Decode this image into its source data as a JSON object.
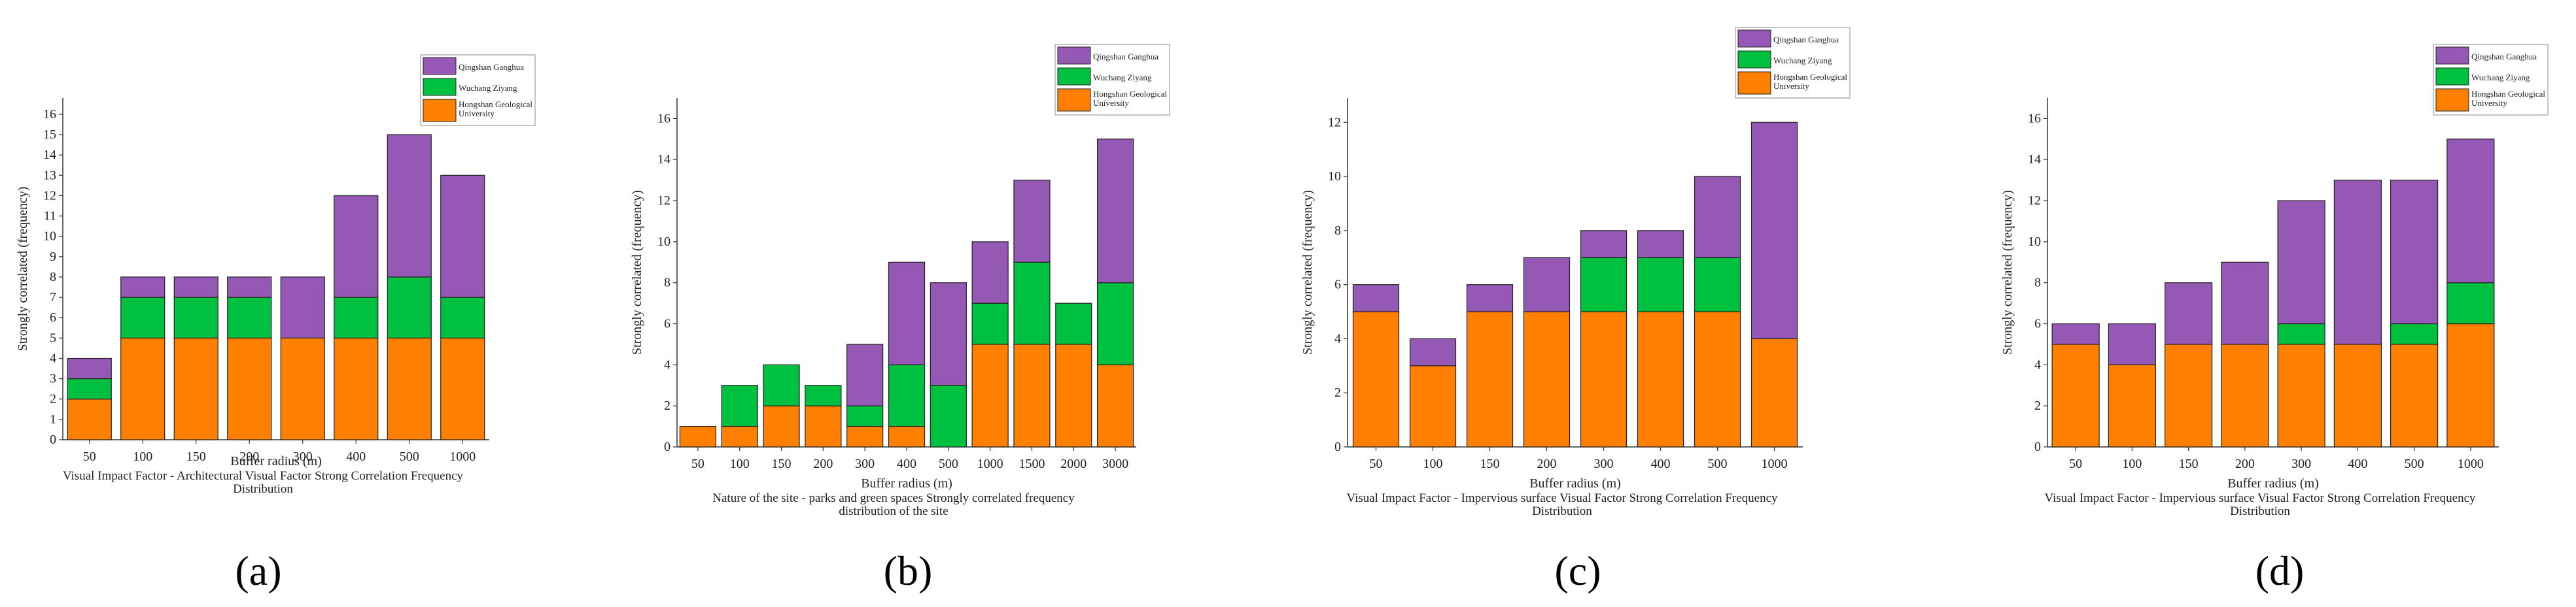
{
  "colors": {
    "Hongshan Geological University": "#ff8000",
    "Wuchang Ziyang": "#00c040",
    "Qingshan Ganghua": "#9558b4",
    "axis": "#333333",
    "bar_stroke": "#222222"
  },
  "legend_order": [
    "Qingshan Ganghua",
    "Wuchang Ziyang",
    "Hongshan Geological University"
  ],
  "chart_data": [
    {
      "id": "a",
      "type": "bar",
      "stacked": true,
      "panel_label": "(a)",
      "title": "Visual Impact Factor - Architectural Visual Factor Strong Correlation Frequency Distribution",
      "caption_lines": [
        "Visual Impact Factor - Architectural Visual Factor Strong Correlation Frequency",
        "Distribution"
      ],
      "xlabel": "Buffer radius (m)",
      "ylabel": "Strongly correlated (frequency)",
      "ylim": [
        0,
        16.8
      ],
      "yticks": [
        0,
        1,
        2,
        3,
        4,
        5,
        6,
        7,
        8,
        9,
        10,
        11,
        12,
        13,
        14,
        15,
        16
      ],
      "categories": [
        "50",
        "100",
        "150",
        "200",
        "300",
        "400",
        "500",
        "1000"
      ],
      "series": [
        {
          "name": "Hongshan Geological University",
          "values": [
            2,
            5,
            5,
            5,
            5,
            5,
            5,
            5
          ]
        },
        {
          "name": "Wuchang Ziyang",
          "values": [
            1,
            2,
            2,
            2,
            0,
            2,
            3,
            2
          ]
        },
        {
          "name": "Qingshan Ganghua",
          "values": [
            1,
            1,
            1,
            1,
            3,
            5,
            7,
            6
          ]
        }
      ],
      "legend_position": "top-right"
    },
    {
      "id": "b",
      "type": "bar",
      "stacked": true,
      "panel_label": "(b)",
      "title": "Nature of the site - parks and green spaces Strongly correlated frequency distribution of the site",
      "caption_lines": [
        "Nature of the site - parks and green spaces Strongly correlated frequency",
        "distribution of the site"
      ],
      "xlabel": "Buffer radius (m)",
      "ylabel": "Strongly correlated (frequency)",
      "ylim": [
        0,
        17
      ],
      "yticks": [
        0,
        2,
        4,
        6,
        8,
        10,
        12,
        14,
        16
      ],
      "categories": [
        "50",
        "100",
        "150",
        "200",
        "300",
        "400",
        "500",
        "1000",
        "1500",
        "2000",
        "3000"
      ],
      "series": [
        {
          "name": "Hongshan Geological University",
          "values": [
            1,
            1,
            2,
            2,
            1,
            1,
            0,
            5,
            5,
            5,
            4
          ]
        },
        {
          "name": "Wuchang Ziyang",
          "values": [
            0,
            2,
            2,
            1,
            1,
            3,
            3,
            2,
            4,
            2,
            4
          ]
        },
        {
          "name": "Qingshan Ganghua",
          "values": [
            0,
            0,
            0,
            0,
            3,
            5,
            5,
            3,
            4,
            0,
            7
          ]
        }
      ],
      "legend_position": "top-right"
    },
    {
      "id": "c",
      "type": "bar",
      "stacked": true,
      "panel_label": "(c)",
      "title": "Visual Impact Factor - Impervious surface Visual Factor Strong Correlation Frequency Distribution",
      "caption_lines": [
        "Visual Impact Factor - Impervious surface Visual Factor Strong Correlation Frequency",
        "Distribution"
      ],
      "xlabel": "Buffer radius (m)",
      "ylabel": "Strongly correlated (frequency)",
      "ylim": [
        0,
        12.9
      ],
      "yticks": [
        0,
        2,
        4,
        6,
        8,
        10,
        12
      ],
      "categories": [
        "50",
        "100",
        "150",
        "200",
        "300",
        "400",
        "500",
        "1000"
      ],
      "series": [
        {
          "name": "Hongshan Geological University",
          "values": [
            5,
            3,
            5,
            5,
            5,
            5,
            5,
            4
          ]
        },
        {
          "name": "Wuchang Ziyang",
          "values": [
            0,
            0,
            0,
            0,
            2,
            2,
            2,
            0
          ]
        },
        {
          "name": "Qingshan Ganghua",
          "values": [
            1,
            1,
            1,
            2,
            1,
            1,
            3,
            8
          ]
        }
      ],
      "legend_position": "top-right"
    },
    {
      "id": "d",
      "type": "bar",
      "stacked": true,
      "panel_label": "(d)",
      "title": "Visual Impact Factor - Impervious surface Visual Factor Strong Correlation Frequency Distribution",
      "caption_lines": [
        "Visual Impact Factor - Impervious surface Visual Factor Strong Correlation Frequency",
        "Distribution"
      ],
      "xlabel": "Buffer radius (m)",
      "ylabel": "Strongly correlated (frequency)",
      "ylim": [
        0,
        17
      ],
      "yticks": [
        0,
        2,
        4,
        6,
        8,
        10,
        12,
        14,
        16
      ],
      "categories": [
        "50",
        "100",
        "150",
        "200",
        "300",
        "400",
        "500",
        "1000"
      ],
      "series": [
        {
          "name": "Hongshan Geological University",
          "values": [
            5,
            4,
            5,
            5,
            5,
            5,
            5,
            6
          ]
        },
        {
          "name": "Wuchang Ziyang",
          "values": [
            0,
            0,
            0,
            0,
            1,
            0,
            1,
            2
          ]
        },
        {
          "name": "Qingshan Ganghua",
          "values": [
            1,
            2,
            3,
            4,
            6,
            8,
            7,
            7
          ]
        }
      ],
      "legend_position": "top-right"
    }
  ]
}
